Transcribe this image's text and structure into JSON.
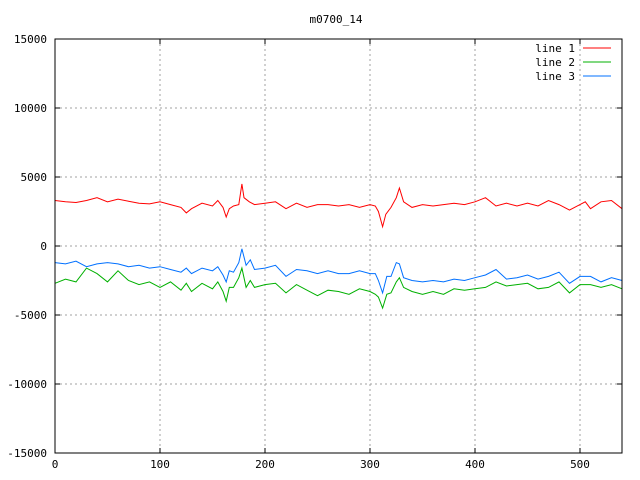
{
  "chart_data": {
    "type": "line",
    "title": "m0700_14",
    "xlabel": "",
    "ylabel": "",
    "xlim": [
      0,
      540
    ],
    "ylim": [
      -15000,
      15000
    ],
    "xticks": [
      0,
      100,
      200,
      300,
      400,
      500
    ],
    "yticks": [
      -15000,
      -10000,
      -5000,
      0,
      5000,
      10000,
      15000
    ],
    "grid": true,
    "legend_position": "top-right",
    "series": [
      {
        "name": "line 1",
        "color": "#ff0000",
        "points": [
          [
            0,
            3300
          ],
          [
            10,
            3200
          ],
          [
            20,
            3150
          ],
          [
            30,
            3300
          ],
          [
            40,
            3500
          ],
          [
            50,
            3200
          ],
          [
            60,
            3400
          ],
          [
            70,
            3250
          ],
          [
            80,
            3100
          ],
          [
            90,
            3050
          ],
          [
            100,
            3200
          ],
          [
            110,
            3000
          ],
          [
            120,
            2800
          ],
          [
            125,
            2400
          ],
          [
            130,
            2700
          ],
          [
            140,
            3100
          ],
          [
            150,
            2900
          ],
          [
            155,
            3300
          ],
          [
            160,
            2800
          ],
          [
            163,
            2100
          ],
          [
            166,
            2700
          ],
          [
            170,
            2900
          ],
          [
            175,
            3000
          ],
          [
            178,
            4500
          ],
          [
            180,
            3500
          ],
          [
            185,
            3200
          ],
          [
            190,
            3000
          ],
          [
            200,
            3100
          ],
          [
            210,
            3200
          ],
          [
            220,
            2700
          ],
          [
            230,
            3100
          ],
          [
            240,
            2800
          ],
          [
            250,
            3000
          ],
          [
            260,
            3000
          ],
          [
            270,
            2900
          ],
          [
            280,
            3000
          ],
          [
            290,
            2800
          ],
          [
            300,
            3000
          ],
          [
            305,
            2900
          ],
          [
            308,
            2500
          ],
          [
            312,
            1400
          ],
          [
            315,
            2300
          ],
          [
            320,
            2800
          ],
          [
            325,
            3500
          ],
          [
            328,
            4200
          ],
          [
            332,
            3200
          ],
          [
            340,
            2800
          ],
          [
            350,
            3000
          ],
          [
            360,
            2900
          ],
          [
            370,
            3000
          ],
          [
            380,
            3100
          ],
          [
            390,
            3000
          ],
          [
            400,
            3200
          ],
          [
            410,
            3500
          ],
          [
            420,
            2900
          ],
          [
            430,
            3100
          ],
          [
            440,
            2900
          ],
          [
            450,
            3100
          ],
          [
            460,
            2900
          ],
          [
            470,
            3300
          ],
          [
            480,
            3000
          ],
          [
            490,
            2600
          ],
          [
            500,
            3000
          ],
          [
            505,
            3200
          ],
          [
            510,
            2700
          ],
          [
            520,
            3200
          ],
          [
            530,
            3300
          ],
          [
            540,
            2700
          ]
        ]
      },
      {
        "name": "line 2",
        "color": "#00b000",
        "points": [
          [
            0,
            -2700
          ],
          [
            10,
            -2400
          ],
          [
            20,
            -2600
          ],
          [
            30,
            -1600
          ],
          [
            40,
            -2000
          ],
          [
            50,
            -2600
          ],
          [
            60,
            -1800
          ],
          [
            70,
            -2500
          ],
          [
            80,
            -2800
          ],
          [
            90,
            -2600
          ],
          [
            100,
            -3000
          ],
          [
            110,
            -2600
          ],
          [
            120,
            -3200
          ],
          [
            125,
            -2700
          ],
          [
            130,
            -3300
          ],
          [
            140,
            -2700
          ],
          [
            150,
            -3100
          ],
          [
            155,
            -2600
          ],
          [
            160,
            -3300
          ],
          [
            163,
            -4000
          ],
          [
            166,
            -3000
          ],
          [
            170,
            -3000
          ],
          [
            175,
            -2300
          ],
          [
            178,
            -1600
          ],
          [
            182,
            -3000
          ],
          [
            186,
            -2500
          ],
          [
            190,
            -3000
          ],
          [
            200,
            -2800
          ],
          [
            210,
            -2700
          ],
          [
            220,
            -3400
          ],
          [
            230,
            -2800
          ],
          [
            240,
            -3200
          ],
          [
            250,
            -3600
          ],
          [
            260,
            -3200
          ],
          [
            270,
            -3300
          ],
          [
            280,
            -3500
          ],
          [
            290,
            -3100
          ],
          [
            300,
            -3300
          ],
          [
            305,
            -3500
          ],
          [
            308,
            -3700
          ],
          [
            312,
            -4500
          ],
          [
            316,
            -3500
          ],
          [
            320,
            -3400
          ],
          [
            325,
            -2600
          ],
          [
            328,
            -2300
          ],
          [
            332,
            -3000
          ],
          [
            340,
            -3300
          ],
          [
            350,
            -3500
          ],
          [
            360,
            -3300
          ],
          [
            370,
            -3500
          ],
          [
            380,
            -3100
          ],
          [
            390,
            -3200
          ],
          [
            400,
            -3100
          ],
          [
            410,
            -3000
          ],
          [
            420,
            -2600
          ],
          [
            430,
            -2900
          ],
          [
            440,
            -2800
          ],
          [
            450,
            -2700
          ],
          [
            460,
            -3100
          ],
          [
            470,
            -3000
          ],
          [
            480,
            -2600
          ],
          [
            490,
            -3400
          ],
          [
            500,
            -2800
          ],
          [
            510,
            -2800
          ],
          [
            520,
            -3000
          ],
          [
            530,
            -2800
          ],
          [
            540,
            -3100
          ]
        ]
      },
      {
        "name": "line 3",
        "color": "#0070ff",
        "points": [
          [
            0,
            -1200
          ],
          [
            10,
            -1300
          ],
          [
            20,
            -1100
          ],
          [
            30,
            -1500
          ],
          [
            40,
            -1300
          ],
          [
            50,
            -1200
          ],
          [
            60,
            -1300
          ],
          [
            70,
            -1500
          ],
          [
            80,
            -1400
          ],
          [
            90,
            -1600
          ],
          [
            100,
            -1500
          ],
          [
            110,
            -1700
          ],
          [
            120,
            -1900
          ],
          [
            125,
            -1600
          ],
          [
            130,
            -2000
          ],
          [
            140,
            -1600
          ],
          [
            150,
            -1800
          ],
          [
            155,
            -1500
          ],
          [
            160,
            -2100
          ],
          [
            163,
            -2600
          ],
          [
            166,
            -1800
          ],
          [
            170,
            -1900
          ],
          [
            175,
            -1200
          ],
          [
            178,
            -200
          ],
          [
            182,
            -1400
          ],
          [
            186,
            -1000
          ],
          [
            190,
            -1700
          ],
          [
            200,
            -1600
          ],
          [
            210,
            -1400
          ],
          [
            220,
            -2200
          ],
          [
            230,
            -1700
          ],
          [
            240,
            -1800
          ],
          [
            250,
            -2000
          ],
          [
            260,
            -1800
          ],
          [
            270,
            -2000
          ],
          [
            280,
            -2000
          ],
          [
            290,
            -1800
          ],
          [
            300,
            -2000
          ],
          [
            305,
            -2000
          ],
          [
            308,
            -2500
          ],
          [
            312,
            -3400
          ],
          [
            316,
            -2200
          ],
          [
            320,
            -2200
          ],
          [
            325,
            -1200
          ],
          [
            328,
            -1300
          ],
          [
            332,
            -2300
          ],
          [
            340,
            -2500
          ],
          [
            350,
            -2600
          ],
          [
            360,
            -2500
          ],
          [
            370,
            -2600
          ],
          [
            380,
            -2400
          ],
          [
            390,
            -2500
          ],
          [
            400,
            -2300
          ],
          [
            410,
            -2100
          ],
          [
            420,
            -1700
          ],
          [
            430,
            -2400
          ],
          [
            440,
            -2300
          ],
          [
            450,
            -2100
          ],
          [
            460,
            -2400
          ],
          [
            470,
            -2200
          ],
          [
            480,
            -1900
          ],
          [
            490,
            -2700
          ],
          [
            500,
            -2200
          ],
          [
            510,
            -2200
          ],
          [
            520,
            -2600
          ],
          [
            530,
            -2300
          ],
          [
            540,
            -2500
          ]
        ]
      }
    ]
  }
}
